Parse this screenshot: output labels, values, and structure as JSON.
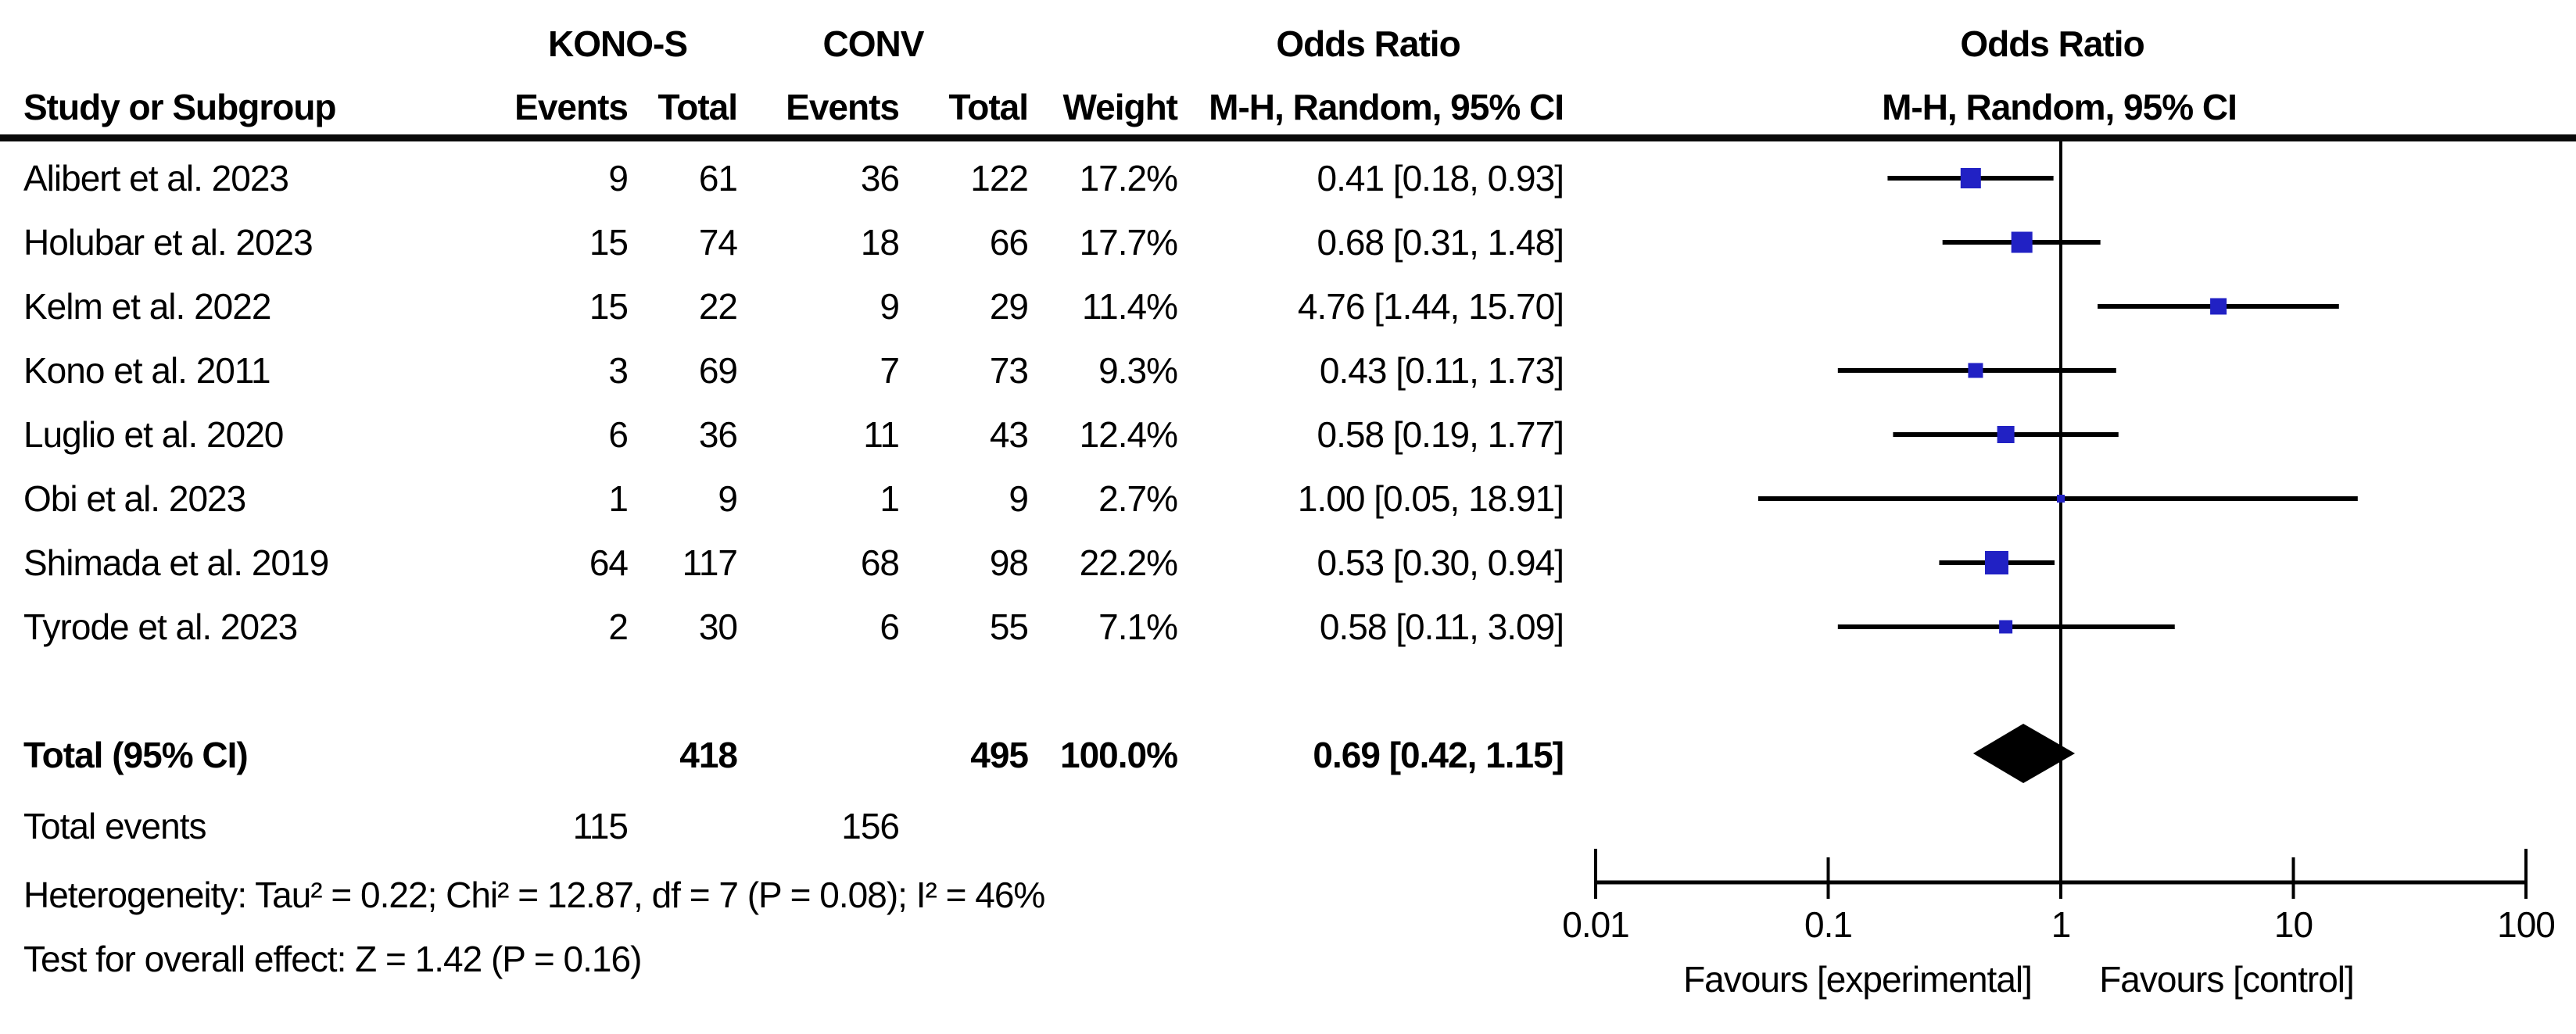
{
  "table": {
    "header": {
      "group_kono": "KONO-S",
      "group_conv": "CONV",
      "odds_ratio_text_col": "Odds Ratio",
      "odds_ratio_plot_col": "Odds Ratio",
      "study_col": "Study or Subgroup",
      "events_col_kono": "Events",
      "total_col_kono": "Total",
      "events_col_conv": "Events",
      "total_col_conv": "Total",
      "weight_col": "Weight",
      "mh_col_text": "M-H, Random, 95% CI",
      "mh_col_plot": "M-H, Random, 95% CI"
    },
    "studies": [
      {
        "name": "Alibert et al. 2023",
        "kono_events": 9,
        "kono_total": 61,
        "conv_events": 36,
        "conv_total": 122,
        "weight": "17.2%",
        "or_ci": "0.41 [0.18, 0.93]"
      },
      {
        "name": "Holubar et al. 2023",
        "kono_events": 15,
        "kono_total": 74,
        "conv_events": 18,
        "conv_total": 66,
        "weight": "17.7%",
        "or_ci": "0.68 [0.31, 1.48]"
      },
      {
        "name": "Kelm et al. 2022",
        "kono_events": 15,
        "kono_total": 22,
        "conv_events": 9,
        "conv_total": 29,
        "weight": "11.4%",
        "or_ci": "4.76 [1.44, 15.70]"
      },
      {
        "name": "Kono et al. 2011",
        "kono_events": 3,
        "kono_total": 69,
        "conv_events": 7,
        "conv_total": 73,
        "weight": "9.3%",
        "or_ci": "0.43 [0.11, 1.73]"
      },
      {
        "name": "Luglio et al. 2020",
        "kono_events": 6,
        "kono_total": 36,
        "conv_events": 11,
        "conv_total": 43,
        "weight": "12.4%",
        "or_ci": "0.58 [0.19, 1.77]"
      },
      {
        "name": "Obi et al. 2023",
        "kono_events": 1,
        "kono_total": 9,
        "conv_events": 1,
        "conv_total": 9,
        "weight": "2.7%",
        "or_ci": "1.00 [0.05, 18.91]"
      },
      {
        "name": "Shimada et al. 2019",
        "kono_events": 64,
        "kono_total": 117,
        "conv_events": 68,
        "conv_total": 98,
        "weight": "22.2%",
        "or_ci": "0.53 [0.30, 0.94]"
      },
      {
        "name": "Tyrode et al. 2023",
        "kono_events": 2,
        "kono_total": 30,
        "conv_events": 6,
        "conv_total": 55,
        "weight": "7.1%",
        "or_ci": "0.58 [0.11, 3.09]"
      }
    ],
    "total_row": {
      "label": "Total (95% CI)",
      "kono_total": 418,
      "conv_total": 495,
      "weight": "100.0%",
      "or_ci": "0.69 [0.42, 1.15]"
    },
    "total_events_row": {
      "label": "Total events",
      "kono_events": 115,
      "conv_events": 156
    },
    "heterogeneity": "Heterogeneity: Tau² = 0.22; Chi² = 12.87, df = 7 (P = 0.08); I² = 46%",
    "overall_effect": "Test for overall effect: Z = 1.42 (P = 0.16)"
  },
  "plot": {
    "axis_tick_labels": [
      "0.01",
      "0.1",
      "1",
      "10",
      "100"
    ],
    "favours_left": "Favours [experimental]",
    "favours_right": "Favours [control]",
    "marker_color": "#2121c4",
    "line_color": "#000000"
  },
  "chart_data": {
    "type": "forest",
    "effect_measure": "Odds Ratio",
    "method": "M-H, Random, 95% CI",
    "x_scale": "log10",
    "xlim": [
      0.01,
      100
    ],
    "x_ticks": [
      0.01,
      0.1,
      1,
      10,
      100
    ],
    "null_line": 1,
    "groups": [
      "KONO-S",
      "CONV"
    ],
    "studies": [
      {
        "name": "Alibert et al. 2023",
        "or": 0.41,
        "ci_low": 0.18,
        "ci_high": 0.93,
        "weight_pct": 17.2,
        "kono_events": 9,
        "kono_total": 61,
        "conv_events": 36,
        "conv_total": 122
      },
      {
        "name": "Holubar et al. 2023",
        "or": 0.68,
        "ci_low": 0.31,
        "ci_high": 1.48,
        "weight_pct": 17.7,
        "kono_events": 15,
        "kono_total": 74,
        "conv_events": 18,
        "conv_total": 66
      },
      {
        "name": "Kelm et al. 2022",
        "or": 4.76,
        "ci_low": 1.44,
        "ci_high": 15.7,
        "weight_pct": 11.4,
        "kono_events": 15,
        "kono_total": 22,
        "conv_events": 9,
        "conv_total": 29
      },
      {
        "name": "Kono et al. 2011",
        "or": 0.43,
        "ci_low": 0.11,
        "ci_high": 1.73,
        "weight_pct": 9.3,
        "kono_events": 3,
        "kono_total": 69,
        "conv_events": 7,
        "conv_total": 73
      },
      {
        "name": "Luglio et al. 2020",
        "or": 0.58,
        "ci_low": 0.19,
        "ci_high": 1.77,
        "weight_pct": 12.4,
        "kono_events": 6,
        "kono_total": 36,
        "conv_events": 11,
        "conv_total": 43
      },
      {
        "name": "Obi et al. 2023",
        "or": 1.0,
        "ci_low": 0.05,
        "ci_high": 18.91,
        "weight_pct": 2.7,
        "kono_events": 1,
        "kono_total": 9,
        "conv_events": 1,
        "conv_total": 9
      },
      {
        "name": "Shimada et al. 2019",
        "or": 0.53,
        "ci_low": 0.3,
        "ci_high": 0.94,
        "weight_pct": 22.2,
        "kono_events": 64,
        "kono_total": 117,
        "conv_events": 68,
        "conv_total": 98
      },
      {
        "name": "Tyrode et al. 2023",
        "or": 0.58,
        "ci_low": 0.11,
        "ci_high": 3.09,
        "weight_pct": 7.1,
        "kono_events": 2,
        "kono_total": 30,
        "conv_events": 6,
        "conv_total": 55
      }
    ],
    "pooled": {
      "label": "Total (95% CI)",
      "or": 0.69,
      "ci_low": 0.42,
      "ci_high": 1.15,
      "weight_pct": 100.0,
      "kono_total": 418,
      "conv_total": 495,
      "kono_events": 115,
      "conv_events": 156
    },
    "heterogeneity": {
      "tau2": 0.22,
      "chi2": 12.87,
      "df": 7,
      "p": 0.08,
      "i2_pct": 46
    },
    "overall_effect": {
      "z": 1.42,
      "p": 0.16
    },
    "x_axis_annotations": {
      "left": "Favours [experimental]",
      "right": "Favours [control]"
    }
  }
}
